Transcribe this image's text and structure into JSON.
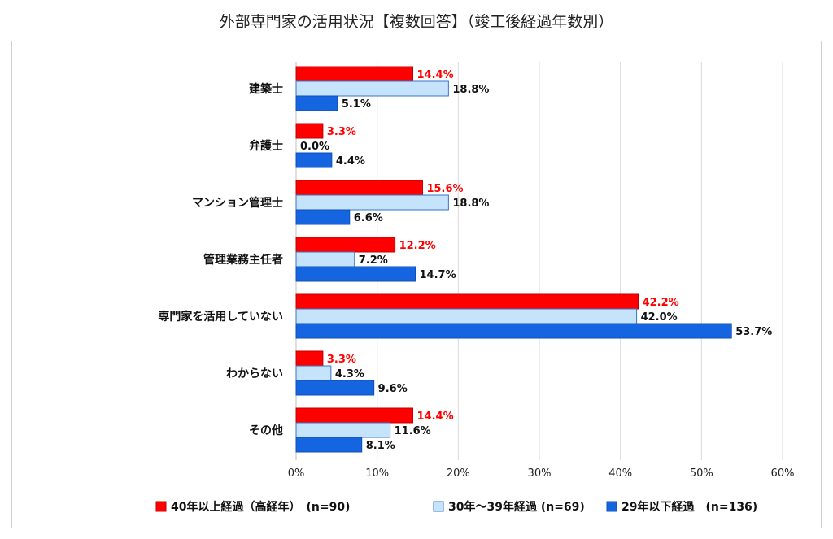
{
  "chart_data": {
    "type": "bar",
    "orientation": "horizontal",
    "title": "外部専門家の活用状況【複数回答】（竣工後経過年数別）",
    "categories": [
      "建築士",
      "弁護士",
      "マンション管理士",
      "管理業務主任者",
      "専門家を活用していない",
      "わからない",
      "その他"
    ],
    "series": [
      {
        "name": "40年以上経過（高経年）　(n=90)",
        "color": "#ff0000",
        "label_color": "#ff0000",
        "border": "#c00000",
        "values": [
          14.4,
          3.3,
          15.6,
          12.2,
          42.2,
          3.3,
          14.4
        ]
      },
      {
        "name": "30年～39年経過 (n=69)",
        "color": "#c5e3fb",
        "label_color": "#111111",
        "border": "#3a73c9",
        "values": [
          18.8,
          0.0,
          18.8,
          7.2,
          42.0,
          4.3,
          11.6
        ]
      },
      {
        "name": "29年以下経過　(n=136)",
        "color": "#1565e0",
        "label_color": "#111111",
        "border": "#0f50b8",
        "values": [
          5.1,
          4.4,
          6.6,
          14.7,
          53.7,
          9.6,
          8.1
        ]
      }
    ],
    "x_ticks": [
      "0%",
      "10%",
      "20%",
      "30%",
      "40%",
      "50%",
      "60%"
    ],
    "xlim": [
      0,
      60
    ],
    "value_suffix": "%",
    "gridlines": true,
    "legend_position": "bottom"
  }
}
